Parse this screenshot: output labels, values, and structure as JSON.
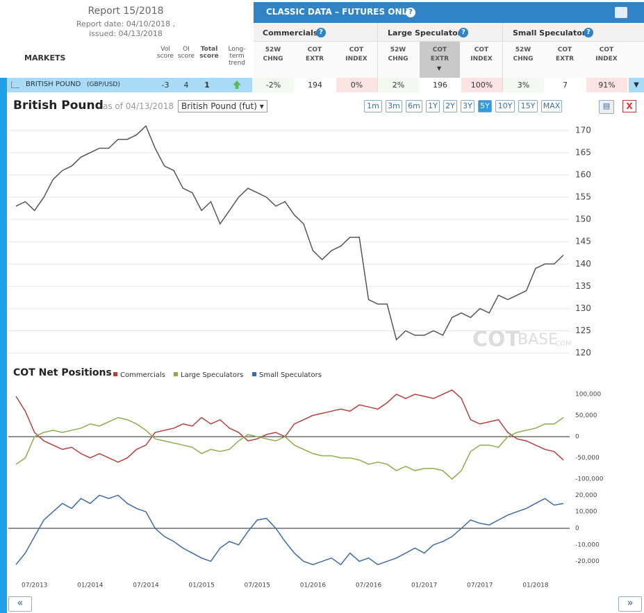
{
  "report": {
    "title": "Report 15/2018",
    "report_date": "Report date: 04/10/2018 ,",
    "issued": "issued: 04/13/2018"
  },
  "markets_header": {
    "markets": "MARKETS",
    "vol": [
      "Vol",
      "score"
    ],
    "oi": [
      "OI",
      "score"
    ],
    "total": [
      "Total",
      "score"
    ],
    "trend": [
      "Long-",
      "term",
      "trend"
    ]
  },
  "classic": {
    "title": "CLASSIC DATA – FUTURES ONLY",
    "groups": [
      "Commercials",
      "Large Speculators",
      "Small Speculators"
    ],
    "columns": [
      [
        "52W",
        "CHNG"
      ],
      [
        "COT",
        "EXTR"
      ],
      [
        "COT",
        "INDEX"
      ],
      [
        "52W",
        "CHNG"
      ],
      [
        "COT",
        "EXTR"
      ],
      [
        "COT",
        "INDEX"
      ],
      [
        "52W",
        "CHNG"
      ],
      [
        "COT",
        "EXTR"
      ],
      [
        "COT",
        "INDEX"
      ]
    ]
  },
  "row": {
    "market": "BRITISH POUND",
    "code": "(GBP/USD)",
    "vol": -3,
    "oi": 4,
    "total": 1,
    "cells": [
      "-2%",
      194,
      "0%",
      "2%",
      196,
      "100%",
      "3%",
      7,
      "91%"
    ]
  },
  "chart_header": {
    "title": "British Pound",
    "as_of": "as of 04/13/2018",
    "select": "British Pound (fut)",
    "ranges": [
      "1m",
      "3m",
      "6m",
      "1Y",
      "2Y",
      "3Y",
      "5Y",
      "10Y",
      "15Y",
      "MAX"
    ],
    "active_range": "5Y",
    "close": "X"
  },
  "watermark": [
    "COT",
    "BASE",
    ".COM"
  ],
  "nav": [
    "«",
    "»"
  ],
  "chart_data": [
    {
      "type": "line",
      "color": "#555555",
      "ylim": [
        119,
        172
      ],
      "yticks": [
        120,
        125,
        130,
        135,
        140,
        145,
        150,
        155,
        160,
        165,
        170
      ],
      "grid": true,
      "values": [
        153,
        154,
        152,
        155,
        159,
        161,
        162,
        164,
        165,
        166,
        166,
        168,
        168,
        169,
        171,
        166,
        162,
        161,
        157,
        156,
        152,
        154,
        149,
        152,
        155,
        157,
        156,
        155,
        153,
        154,
        151,
        149,
        143,
        141,
        143,
        144,
        146,
        146,
        132,
        131,
        131,
        123,
        125,
        124,
        124,
        125,
        124,
        128,
        129,
        128,
        130,
        129,
        133,
        132,
        133,
        134,
        139,
        140,
        140,
        142
      ]
    },
    {
      "type": "line",
      "title": "COT Net Positions",
      "ylim": [
        -108000,
        108000
      ],
      "grid": false,
      "zero_line": true,
      "yticks": [
        {
          "value": -100000,
          "label": "-100,000"
        },
        {
          "value": -50000,
          "label": "-50,000"
        },
        0,
        {
          "value": 50000,
          "label": "50,000"
        },
        {
          "value": 100000,
          "label": "100,000"
        }
      ],
      "series": [
        {
          "name": "Commercials",
          "color": "#b5413e",
          "values": [
            95000,
            60000,
            10000,
            -10000,
            -20000,
            -30000,
            -25000,
            -40000,
            -50000,
            -40000,
            -50000,
            -60000,
            -50000,
            -30000,
            -20000,
            10000,
            15000,
            20000,
            30000,
            25000,
            45000,
            30000,
            40000,
            20000,
            10000,
            -10000,
            -5000,
            5000,
            10000,
            0,
            30000,
            40000,
            50000,
            55000,
            60000,
            65000,
            60000,
            75000,
            70000,
            65000,
            80000,
            100000,
            90000,
            100000,
            95000,
            90000,
            100000,
            110000,
            90000,
            40000,
            30000,
            35000,
            40000,
            10000,
            -5000,
            -10000,
            -20000,
            -30000,
            -35000,
            -55000
          ]
        },
        {
          "name": "Large Speculators",
          "color": "#8eac4e",
          "values": [
            -65000,
            -50000,
            0,
            10000,
            15000,
            10000,
            15000,
            20000,
            30000,
            25000,
            35000,
            45000,
            40000,
            30000,
            15000,
            -5000,
            -10000,
            -15000,
            -20000,
            -25000,
            -40000,
            -30000,
            -35000,
            -30000,
            -10000,
            5000,
            0,
            -5000,
            -10000,
            0,
            -20000,
            -30000,
            -40000,
            -45000,
            -45000,
            -50000,
            -50000,
            -55000,
            -65000,
            -60000,
            -65000,
            -80000,
            -70000,
            -80000,
            -75000,
            -75000,
            -80000,
            -100000,
            -80000,
            -35000,
            -20000,
            -20000,
            -25000,
            0,
            10000,
            15000,
            20000,
            30000,
            30000,
            45000
          ]
        }
      ]
    },
    {
      "type": "line",
      "ylim": [
        -29000,
        23500
      ],
      "grid": false,
      "zero_line": true,
      "yticks": [
        {
          "value": -20000,
          "label": "-20,000"
        },
        {
          "value": -10000,
          "label": "-10,000"
        },
        0,
        {
          "value": 10000,
          "label": "10,000"
        },
        {
          "value": 20000,
          "label": "20,000"
        }
      ],
      "categories": [
        null,
        null,
        "07/2013",
        null,
        null,
        null,
        null,
        null,
        "01/2014",
        null,
        null,
        null,
        null,
        null,
        "07/2014",
        null,
        null,
        null,
        null,
        null,
        "01/2015",
        null,
        null,
        null,
        null,
        null,
        "07/2015",
        null,
        null,
        null,
        null,
        null,
        "01/2016",
        null,
        null,
        null,
        null,
        null,
        "07/2016",
        null,
        null,
        null,
        null,
        null,
        "01/2017",
        null,
        null,
        null,
        null,
        null,
        "07/2017",
        null,
        null,
        null,
        null,
        null,
        "01/2018",
        null,
        null,
        null
      ],
      "series": [
        {
          "name": "Small Speculators",
          "color": "#3f6aa3",
          "values": [
            -22000,
            -15000,
            -5000,
            5000,
            10000,
            15000,
            12000,
            18000,
            15000,
            20000,
            18000,
            20000,
            15000,
            12000,
            10000,
            0,
            -5000,
            -8000,
            -12000,
            -15000,
            -18000,
            -20000,
            -12000,
            -8000,
            -10000,
            -2000,
            5000,
            6000,
            0,
            -8000,
            -15000,
            -20000,
            -22000,
            -20000,
            -18000,
            -22000,
            -15000,
            -20000,
            -18000,
            -22000,
            -20000,
            -18000,
            -15000,
            -12000,
            -15000,
            -10000,
            -8000,
            -5000,
            0,
            5000,
            3000,
            2000,
            5000,
            8000,
            10000,
            12000,
            15000,
            18000,
            14000,
            15000
          ]
        }
      ]
    }
  ]
}
